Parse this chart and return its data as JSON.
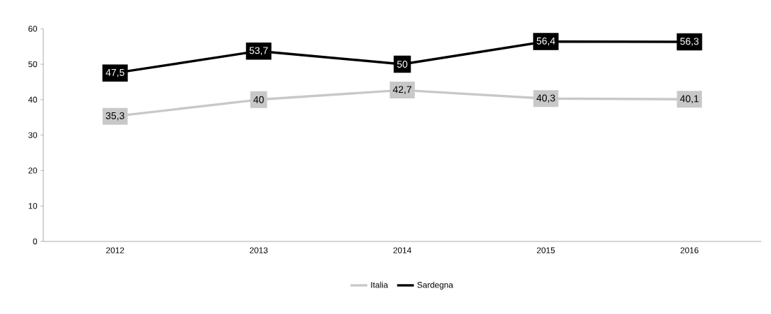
{
  "chart_data": {
    "type": "line",
    "categories": [
      "2012",
      "2013",
      "2014",
      "2015",
      "2016"
    ],
    "series": [
      {
        "name": "Italia",
        "color": "#c8c8c8",
        "values": [
          35.3,
          40,
          42.7,
          40.3,
          40.1
        ],
        "value_labels": [
          "35,3",
          "40",
          "42,7",
          "40,3",
          "40,1"
        ]
      },
      {
        "name": "Sardegna",
        "color": "#000000",
        "values": [
          47.5,
          53.7,
          50,
          56.4,
          56.3
        ],
        "value_labels": [
          "47,5",
          "53,7",
          "50",
          "56,4",
          "56,3"
        ]
      }
    ],
    "ylim": [
      0,
      60
    ],
    "yticks": [
      0,
      10,
      20,
      30,
      40,
      50,
      60
    ],
    "legend": "bottom",
    "marker": "square"
  }
}
